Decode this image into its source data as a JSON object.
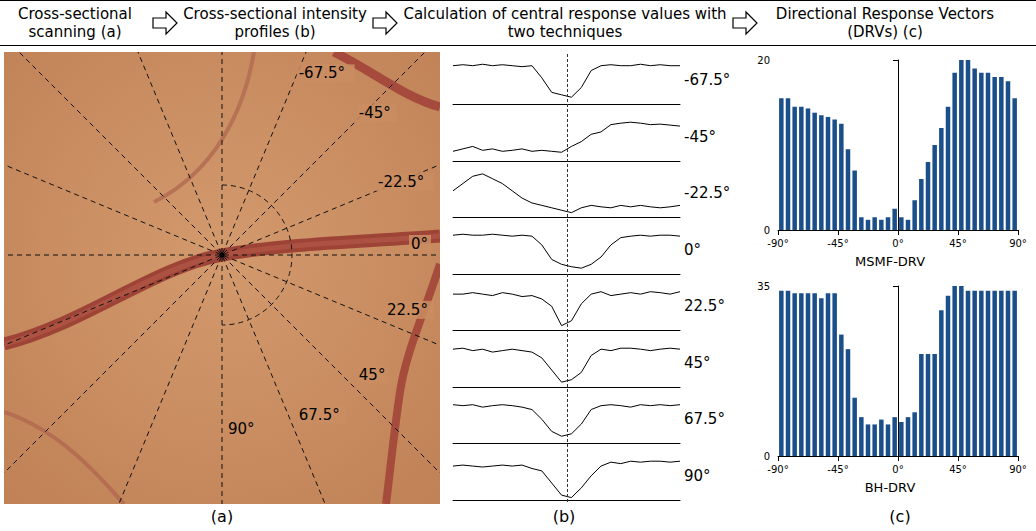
{
  "header": {
    "steps": [
      "Cross-sectional scanning (a)",
      "Cross-sectional intensity profiles (b)",
      "Calculation of central response values with two techniques",
      "Directional Response Vectors (DRVs) (c)"
    ]
  },
  "scan": {
    "angles": [
      {
        "value": -67.5,
        "label": "-67.5°"
      },
      {
        "value": -45,
        "label": "-45°"
      },
      {
        "value": -22.5,
        "label": "-22.5°"
      },
      {
        "value": 0,
        "label": "0°"
      },
      {
        "value": 22.5,
        "label": "22.5°"
      },
      {
        "value": 45,
        "label": "45°"
      },
      {
        "value": 67.5,
        "label": "67.5°"
      },
      {
        "value": 90,
        "label": "90°"
      }
    ]
  },
  "profiles": {
    "type": "line",
    "ylim": [
      0,
      1
    ],
    "tick_labels": false,
    "color": "#000000",
    "series": [
      {
        "name": "-67.5°",
        "values": [
          0.8,
          0.82,
          0.8,
          0.83,
          0.8,
          0.82,
          0.8,
          0.78,
          0.8,
          0.55,
          0.25,
          0.2,
          0.15,
          0.35,
          0.7,
          0.8,
          0.82,
          0.8,
          0.8,
          0.83,
          0.8,
          0.82,
          0.8,
          0.8
        ]
      },
      {
        "name": "-45°",
        "values": [
          0.2,
          0.25,
          0.3,
          0.22,
          0.25,
          0.2,
          0.22,
          0.25,
          0.2,
          0.22,
          0.2,
          0.18,
          0.3,
          0.4,
          0.55,
          0.6,
          0.75,
          0.78,
          0.8,
          0.78,
          0.75,
          0.76,
          0.74,
          0.72
        ]
      },
      {
        "name": "-22.5°",
        "values": [
          0.55,
          0.7,
          0.85,
          0.9,
          0.8,
          0.7,
          0.55,
          0.4,
          0.3,
          0.25,
          0.2,
          0.15,
          0.1,
          0.2,
          0.25,
          0.22,
          0.2,
          0.25,
          0.22,
          0.25,
          0.22,
          0.2,
          0.22,
          0.25
        ]
      },
      {
        "name": "0°",
        "values": [
          0.8,
          0.82,
          0.8,
          0.8,
          0.82,
          0.8,
          0.78,
          0.8,
          0.78,
          0.6,
          0.3,
          0.2,
          0.15,
          0.12,
          0.2,
          0.35,
          0.6,
          0.75,
          0.78,
          0.8,
          0.78,
          0.8,
          0.8,
          0.78
        ]
      },
      {
        "name": "22.5°",
        "values": [
          0.75,
          0.75,
          0.78,
          0.75,
          0.72,
          0.78,
          0.75,
          0.7,
          0.72,
          0.65,
          0.5,
          0.1,
          0.2,
          0.55,
          0.75,
          0.8,
          0.72,
          0.75,
          0.78,
          0.75,
          0.8,
          0.78,
          0.75,
          0.8
        ]
      },
      {
        "name": "45°",
        "values": [
          0.78,
          0.8,
          0.75,
          0.78,
          0.72,
          0.75,
          0.78,
          0.75,
          0.72,
          0.6,
          0.35,
          0.1,
          0.15,
          0.3,
          0.65,
          0.78,
          0.75,
          0.8,
          0.8,
          0.78,
          0.75,
          0.78,
          0.8,
          0.78
        ]
      },
      {
        "name": "67.5°",
        "values": [
          0.8,
          0.78,
          0.8,
          0.75,
          0.78,
          0.8,
          0.78,
          0.75,
          0.7,
          0.5,
          0.25,
          0.15,
          0.2,
          0.4,
          0.7,
          0.78,
          0.8,
          0.78,
          0.75,
          0.8,
          0.78,
          0.8,
          0.78,
          0.8
        ]
      },
      {
        "name": "90°",
        "values": [
          0.7,
          0.72,
          0.7,
          0.68,
          0.7,
          0.72,
          0.7,
          0.72,
          0.65,
          0.6,
          0.35,
          0.1,
          0.05,
          0.25,
          0.5,
          0.7,
          0.78,
          0.75,
          0.8,
          0.78,
          0.8,
          0.8,
          0.78,
          0.8
        ]
      }
    ]
  },
  "chart_data": [
    {
      "type": "bar",
      "title": "MSMF-DRV",
      "color": "#1b4f8a",
      "grid": false,
      "x": [
        -87.5,
        -82.5,
        -77.5,
        -72.5,
        -67.5,
        -62.5,
        -57.5,
        -52.5,
        -47.5,
        -42.5,
        -37.5,
        -32.5,
        -27.5,
        -22.5,
        -17.5,
        -12.5,
        -7.5,
        -2.5,
        2.5,
        7.5,
        12.5,
        17.5,
        22.5,
        27.5,
        32.5,
        37.5,
        42.5,
        47.5,
        52.5,
        57.5,
        62.5,
        67.5,
        72.5,
        77.5,
        82.5,
        87.5
      ],
      "values": [
        15.5,
        15.5,
        14.5,
        14.5,
        14.3,
        13.8,
        13.5,
        13.3,
        13,
        12.5,
        9.5,
        7,
        1.5,
        1.2,
        1.5,
        1.2,
        1.5,
        2.5,
        1.5,
        1.2,
        3.5,
        6,
        8,
        10,
        12,
        14.5,
        18.5,
        20,
        20,
        19,
        18.5,
        18.5,
        18,
        18,
        17.5,
        15.5
      ],
      "xlim": [
        -90,
        90
      ],
      "xticks": [
        {
          "value": -90,
          "label": "-90°"
        },
        {
          "value": -45,
          "label": "-45°"
        },
        {
          "value": 0,
          "label": "0°"
        },
        {
          "value": 45,
          "label": "45°"
        },
        {
          "value": 90,
          "label": "90°"
        }
      ],
      "ylim": [
        0,
        20
      ],
      "yticks": [
        0,
        20
      ]
    },
    {
      "type": "bar",
      "title": "BH-DRV",
      "color": "#1b4f8a",
      "grid": false,
      "x": [
        -87.5,
        -82.5,
        -77.5,
        -72.5,
        -67.5,
        -62.5,
        -57.5,
        -52.5,
        -47.5,
        -42.5,
        -37.5,
        -32.5,
        -27.5,
        -22.5,
        -17.5,
        -12.5,
        -7.5,
        -2.5,
        2.5,
        7.5,
        12.5,
        17.5,
        22.5,
        27.5,
        32.5,
        37.5,
        42.5,
        47.5,
        52.5,
        57.5,
        62.5,
        67.5,
        72.5,
        77.5,
        82.5,
        87.5
      ],
      "values": [
        34,
        34,
        33.5,
        33.5,
        33.5,
        33.5,
        32.5,
        33.5,
        33.5,
        25,
        22,
        12,
        8,
        6.5,
        6.5,
        7.5,
        6.5,
        8,
        7,
        8,
        9,
        21,
        21,
        21,
        30,
        33,
        35,
        35,
        34,
        34,
        34,
        34,
        34,
        34,
        34,
        34
      ],
      "xlim": [
        -90,
        90
      ],
      "xticks": [
        {
          "value": -90,
          "label": "-90°"
        },
        {
          "value": -45,
          "label": "-45°"
        },
        {
          "value": 0,
          "label": "0°"
        },
        {
          "value": 45,
          "label": "45°"
        },
        {
          "value": 90,
          "label": "90°"
        }
      ],
      "ylim": [
        0,
        35
      ],
      "yticks": [
        0,
        35
      ]
    }
  ],
  "captions": [
    "(a)",
    "(b)",
    "(c)"
  ]
}
